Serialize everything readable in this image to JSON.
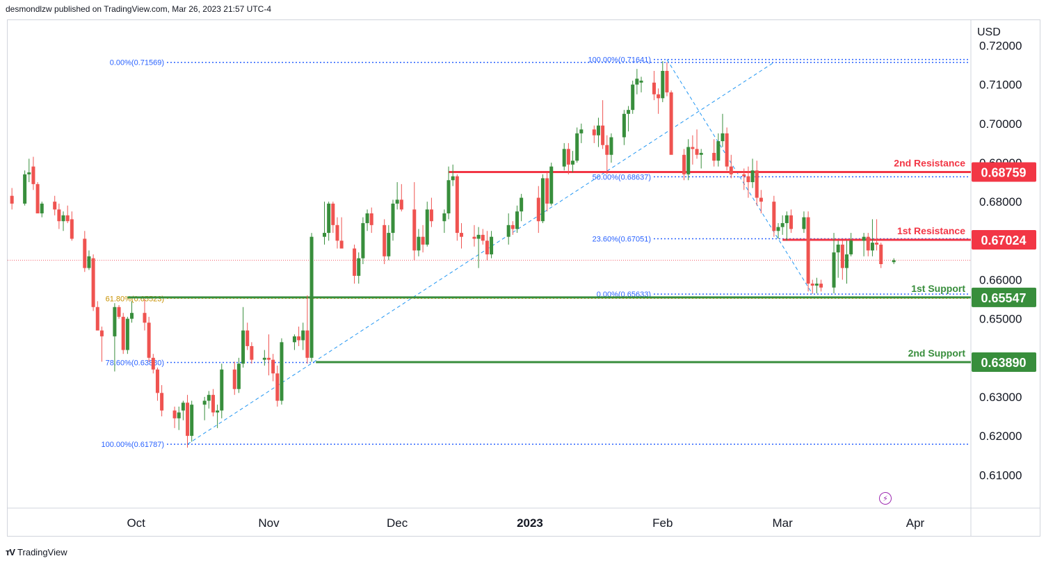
{
  "header": {
    "publisher": "desmondlzw published on TradingView.com, Mar 26, 2023 21:57 UTC-4"
  },
  "footer": {
    "brand": "TradingView"
  },
  "chart_data": {
    "type": "candlestick",
    "currency_label": "USD",
    "ylim": [
      0.6015,
      0.7265
    ],
    "y_ticks": [
      "0.72000",
      "0.71000",
      "0.70000",
      "0.69000",
      "0.68000",
      "0.66000",
      "0.65000",
      "0.63000",
      "0.62000",
      "0.61000"
    ],
    "x_ticks": [
      "Oct",
      "Nov",
      "Dec",
      "2023",
      "Feb",
      "Mar",
      "Apr"
    ],
    "x_tick_dates": [
      "2022-10-01",
      "2022-11-01",
      "2022-12-01",
      "2023-01-01",
      "2023-02-01",
      "2023-03-01",
      "2023-04-01"
    ],
    "x_range": [
      "2022-09-01",
      "2023-04-14"
    ],
    "current_price": 0.665,
    "levels": [
      {
        "name": "2nd Resistance",
        "value": "0.68759",
        "color": "#f23645"
      },
      {
        "name": "1st Resistance",
        "value": "0.67024",
        "color": "#f23645"
      },
      {
        "name": "1st Support",
        "value": "0.65547",
        "color": "#388e3c"
      },
      {
        "name": "2nd Support",
        "value": "0.63890",
        "color": "#388e3c"
      }
    ],
    "fib_left": [
      {
        "label": "0.00%(0.71569)",
        "value": 0.71569
      },
      {
        "label": "61.80%(0.65523)",
        "value": 0.65523
      },
      {
        "label": "78.60%(0.63880)",
        "value": 0.6388
      },
      {
        "label": "100.00%(0.61787)",
        "value": 0.61787
      }
    ],
    "fib_right": [
      {
        "label": "100.00%(0.71641)",
        "value": 0.71641
      },
      {
        "label": "50.00%(0.68637)",
        "value": 0.68637
      },
      {
        "label": "23.60%(0.67051)",
        "value": 0.67051
      },
      {
        "label": "0.00%(0.65633)",
        "value": 0.65633
      }
    ],
    "candles": [
      {
        "d": "2022-09-02",
        "o": 0.6815,
        "h": 0.6835,
        "l": 0.678,
        "c": 0.6795
      },
      {
        "d": "2022-09-05",
        "o": 0.6795,
        "h": 0.688,
        "l": 0.679,
        "c": 0.687
      },
      {
        "d": "2022-09-06",
        "o": 0.687,
        "h": 0.691,
        "l": 0.685,
        "c": 0.6875
      },
      {
        "d": "2022-09-07",
        "o": 0.689,
        "h": 0.6915,
        "l": 0.683,
        "c": 0.6845
      },
      {
        "d": "2022-09-08",
        "o": 0.6845,
        "h": 0.685,
        "l": 0.677,
        "c": 0.677
      },
      {
        "d": "2022-09-09",
        "o": 0.677,
        "h": 0.68,
        "l": 0.676,
        "c": 0.6795
      },
      {
        "d": "2022-09-12",
        "o": 0.68,
        "h": 0.6815,
        "l": 0.6765,
        "c": 0.678
      },
      {
        "d": "2022-09-13",
        "o": 0.678,
        "h": 0.6795,
        "l": 0.673,
        "c": 0.675
      },
      {
        "d": "2022-09-14",
        "o": 0.675,
        "h": 0.6775,
        "l": 0.6725,
        "c": 0.6765
      },
      {
        "d": "2022-09-15",
        "o": 0.6765,
        "h": 0.679,
        "l": 0.6745,
        "c": 0.675
      },
      {
        "d": "2022-09-16",
        "o": 0.6755,
        "h": 0.6775,
        "l": 0.67,
        "c": 0.6705
      },
      {
        "d": "2022-09-19",
        "o": 0.6705,
        "h": 0.6725,
        "l": 0.662,
        "c": 0.663
      },
      {
        "d": "2022-09-20",
        "o": 0.663,
        "h": 0.6675,
        "l": 0.6625,
        "c": 0.666
      },
      {
        "d": "2022-09-21",
        "o": 0.6655,
        "h": 0.6665,
        "l": 0.652,
        "c": 0.653
      },
      {
        "d": "2022-09-22",
        "o": 0.653,
        "h": 0.6545,
        "l": 0.647,
        "c": 0.647
      },
      {
        "d": "2022-09-23",
        "o": 0.647,
        "h": 0.648,
        "l": 0.639,
        "c": 0.6455
      },
      {
        "d": "2022-09-26",
        "o": 0.6455,
        "h": 0.654,
        "l": 0.6365,
        "c": 0.653
      },
      {
        "d": "2022-09-27",
        "o": 0.653,
        "h": 0.6535,
        "l": 0.65,
        "c": 0.6505
      },
      {
        "d": "2022-09-28",
        "o": 0.6505,
        "h": 0.6515,
        "l": 0.641,
        "c": 0.642
      },
      {
        "d": "2022-09-29",
        "o": 0.642,
        "h": 0.6505,
        "l": 0.641,
        "c": 0.65
      },
      {
        "d": "2022-09-30",
        "o": 0.65,
        "h": 0.6545,
        "l": 0.649,
        "c": 0.6515
      },
      {
        "d": "2022-10-03",
        "o": 0.6515,
        "h": 0.655,
        "l": 0.647,
        "c": 0.649
      },
      {
        "d": "2022-10-04",
        "o": 0.649,
        "h": 0.6505,
        "l": 0.639,
        "c": 0.64
      },
      {
        "d": "2022-10-05",
        "o": 0.64,
        "h": 0.641,
        "l": 0.636,
        "c": 0.637
      },
      {
        "d": "2022-10-06",
        "o": 0.637,
        "h": 0.6375,
        "l": 0.629,
        "c": 0.631
      },
      {
        "d": "2022-10-07",
        "o": 0.631,
        "h": 0.633,
        "l": 0.625,
        "c": 0.6265
      },
      {
        "d": "2022-10-10",
        "o": 0.6265,
        "h": 0.6275,
        "l": 0.622,
        "c": 0.6245
      },
      {
        "d": "2022-10-11",
        "o": 0.6245,
        "h": 0.6275,
        "l": 0.6215,
        "c": 0.626
      },
      {
        "d": "2022-10-12",
        "o": 0.6265,
        "h": 0.629,
        "l": 0.624,
        "c": 0.6285
      },
      {
        "d": "2022-10-13",
        "o": 0.6285,
        "h": 0.6305,
        "l": 0.617,
        "c": 0.62
      },
      {
        "d": "2022-10-14",
        "o": 0.62,
        "h": 0.629,
        "l": 0.6185,
        "c": 0.628
      },
      {
        "d": "2022-10-17",
        "o": 0.628,
        "h": 0.63,
        "l": 0.624,
        "c": 0.629
      },
      {
        "d": "2022-10-18",
        "o": 0.629,
        "h": 0.6315,
        "l": 0.627,
        "c": 0.6305
      },
      {
        "d": "2022-10-19",
        "o": 0.6305,
        "h": 0.632,
        "l": 0.625,
        "c": 0.626
      },
      {
        "d": "2022-10-20",
        "o": 0.626,
        "h": 0.628,
        "l": 0.622,
        "c": 0.6265
      },
      {
        "d": "2022-10-21",
        "o": 0.6265,
        "h": 0.6385,
        "l": 0.6245,
        "c": 0.637
      },
      {
        "d": "2022-10-24",
        "o": 0.637,
        "h": 0.639,
        "l": 0.6305,
        "c": 0.632
      },
      {
        "d": "2022-10-25",
        "o": 0.632,
        "h": 0.64,
        "l": 0.631,
        "c": 0.6385
      },
      {
        "d": "2022-10-26",
        "o": 0.6385,
        "h": 0.653,
        "l": 0.6375,
        "c": 0.647
      },
      {
        "d": "2022-10-27",
        "o": 0.647,
        "h": 0.649,
        "l": 0.642,
        "c": 0.643
      },
      {
        "d": "2022-10-28",
        "o": 0.643,
        "h": 0.644,
        "l": 0.6385,
        "c": 0.6395
      },
      {
        "d": "2022-10-31",
        "o": 0.6395,
        "h": 0.642,
        "l": 0.638,
        "c": 0.64
      },
      {
        "d": "2022-11-01",
        "o": 0.64,
        "h": 0.646,
        "l": 0.6355,
        "c": 0.6395
      },
      {
        "d": "2022-11-02",
        "o": 0.6395,
        "h": 0.641,
        "l": 0.634,
        "c": 0.636
      },
      {
        "d": "2022-11-03",
        "o": 0.636,
        "h": 0.638,
        "l": 0.6275,
        "c": 0.629
      },
      {
        "d": "2022-11-04",
        "o": 0.629,
        "h": 0.645,
        "l": 0.628,
        "c": 0.644
      },
      {
        "d": "2022-11-07",
        "o": 0.644,
        "h": 0.646,
        "l": 0.642,
        "c": 0.6455
      },
      {
        "d": "2022-11-08",
        "o": 0.6455,
        "h": 0.648,
        "l": 0.643,
        "c": 0.6445
      },
      {
        "d": "2022-11-09",
        "o": 0.6445,
        "h": 0.649,
        "l": 0.642,
        "c": 0.647
      },
      {
        "d": "2022-11-10",
        "o": 0.647,
        "h": 0.656,
        "l": 0.6385,
        "c": 0.64
      },
      {
        "d": "2022-11-11",
        "o": 0.64,
        "h": 0.672,
        "l": 0.639,
        "c": 0.671
      },
      {
        "d": "2022-11-14",
        "o": 0.671,
        "h": 0.68,
        "l": 0.669,
        "c": 0.672
      },
      {
        "d": "2022-11-15",
        "o": 0.672,
        "h": 0.68,
        "l": 0.67,
        "c": 0.6795
      },
      {
        "d": "2022-11-16",
        "o": 0.6795,
        "h": 0.68,
        "l": 0.672,
        "c": 0.674
      },
      {
        "d": "2022-11-17",
        "o": 0.674,
        "h": 0.676,
        "l": 0.668,
        "c": 0.67
      },
      {
        "d": "2022-11-18",
        "o": 0.67,
        "h": 0.676,
        "l": 0.668,
        "c": 0.668
      },
      {
        "d": "2022-11-21",
        "o": 0.668,
        "h": 0.669,
        "l": 0.659,
        "c": 0.661
      },
      {
        "d": "2022-11-22",
        "o": 0.661,
        "h": 0.667,
        "l": 0.659,
        "c": 0.6655
      },
      {
        "d": "2022-11-23",
        "o": 0.6655,
        "h": 0.676,
        "l": 0.664,
        "c": 0.6745
      },
      {
        "d": "2022-11-24",
        "o": 0.6745,
        "h": 0.678,
        "l": 0.6725,
        "c": 0.677
      },
      {
        "d": "2022-11-25",
        "o": 0.677,
        "h": 0.6785,
        "l": 0.672,
        "c": 0.674
      },
      {
        "d": "2022-11-28",
        "o": 0.674,
        "h": 0.6755,
        "l": 0.664,
        "c": 0.666
      },
      {
        "d": "2022-11-29",
        "o": 0.666,
        "h": 0.674,
        "l": 0.665,
        "c": 0.672
      },
      {
        "d": "2022-11-30",
        "o": 0.672,
        "h": 0.6805,
        "l": 0.67,
        "c": 0.6795
      },
      {
        "d": "2022-12-01",
        "o": 0.6795,
        "h": 0.685,
        "l": 0.678,
        "c": 0.6805
      },
      {
        "d": "2022-12-02",
        "o": 0.6805,
        "h": 0.6845,
        "l": 0.6775,
        "c": 0.678
      },
      {
        "d": "2022-12-05",
        "o": 0.678,
        "h": 0.685,
        "l": 0.665,
        "c": 0.6675
      },
      {
        "d": "2022-12-06",
        "o": 0.6675,
        "h": 0.673,
        "l": 0.666,
        "c": 0.671
      },
      {
        "d": "2022-12-07",
        "o": 0.671,
        "h": 0.674,
        "l": 0.667,
        "c": 0.669
      },
      {
        "d": "2022-12-08",
        "o": 0.669,
        "h": 0.68,
        "l": 0.6685,
        "c": 0.678
      },
      {
        "d": "2022-12-09",
        "o": 0.678,
        "h": 0.681,
        "l": 0.6735,
        "c": 0.675
      },
      {
        "d": "2022-12-12",
        "o": 0.675,
        "h": 0.678,
        "l": 0.672,
        "c": 0.677
      },
      {
        "d": "2022-12-13",
        "o": 0.677,
        "h": 0.689,
        "l": 0.6755,
        "c": 0.6855
      },
      {
        "d": "2022-12-14",
        "o": 0.6855,
        "h": 0.6895,
        "l": 0.684,
        "c": 0.6865
      },
      {
        "d": "2022-12-15",
        "o": 0.6865,
        "h": 0.687,
        "l": 0.67,
        "c": 0.672
      },
      {
        "d": "2022-12-16",
        "o": 0.672,
        "h": 0.6745,
        "l": 0.668,
        "c": 0.671
      },
      {
        "d": "2022-12-19",
        "o": 0.671,
        "h": 0.674,
        "l": 0.6685,
        "c": 0.6705
      },
      {
        "d": "2022-12-20",
        "o": 0.6705,
        "h": 0.6735,
        "l": 0.663,
        "c": 0.6715
      },
      {
        "d": "2022-12-21",
        "o": 0.6715,
        "h": 0.673,
        "l": 0.669,
        "c": 0.67
      },
      {
        "d": "2022-12-22",
        "o": 0.67,
        "h": 0.6725,
        "l": 0.665,
        "c": 0.6665
      },
      {
        "d": "2022-12-23",
        "o": 0.6665,
        "h": 0.6725,
        "l": 0.6655,
        "c": 0.671
      },
      {
        "d": "2022-12-27",
        "o": 0.671,
        "h": 0.677,
        "l": 0.669,
        "c": 0.674
      },
      {
        "d": "2022-12-28",
        "o": 0.674,
        "h": 0.675,
        "l": 0.6715,
        "c": 0.673
      },
      {
        "d": "2022-12-29",
        "o": 0.673,
        "h": 0.679,
        "l": 0.672,
        "c": 0.6775
      },
      {
        "d": "2022-12-30",
        "o": 0.6775,
        "h": 0.682,
        "l": 0.675,
        "c": 0.681
      },
      {
        "d": "2023-01-03",
        "o": 0.681,
        "h": 0.684,
        "l": 0.672,
        "c": 0.675
      },
      {
        "d": "2023-01-04",
        "o": 0.675,
        "h": 0.687,
        "l": 0.6745,
        "c": 0.686
      },
      {
        "d": "2023-01-05",
        "o": 0.686,
        "h": 0.6875,
        "l": 0.6775,
        "c": 0.6795
      },
      {
        "d": "2023-01-06",
        "o": 0.6795,
        "h": 0.69,
        "l": 0.679,
        "c": 0.689
      },
      {
        "d": "2023-01-09",
        "o": 0.689,
        "h": 0.695,
        "l": 0.688,
        "c": 0.6935
      },
      {
        "d": "2023-01-10",
        "o": 0.6935,
        "h": 0.695,
        "l": 0.687,
        "c": 0.6895
      },
      {
        "d": "2023-01-11",
        "o": 0.6895,
        "h": 0.693,
        "l": 0.6875,
        "c": 0.6905
      },
      {
        "d": "2023-01-12",
        "o": 0.6905,
        "h": 0.699,
        "l": 0.69,
        "c": 0.6975
      },
      {
        "d": "2023-01-13",
        "o": 0.6975,
        "h": 0.7,
        "l": 0.695,
        "c": 0.6985
      },
      {
        "d": "2023-01-16",
        "o": 0.6985,
        "h": 0.6995,
        "l": 0.695,
        "c": 0.697
      },
      {
        "d": "2023-01-17",
        "o": 0.697,
        "h": 0.7015,
        "l": 0.694,
        "c": 0.6995
      },
      {
        "d": "2023-01-18",
        "o": 0.6995,
        "h": 0.706,
        "l": 0.6935,
        "c": 0.6945
      },
      {
        "d": "2023-01-19",
        "o": 0.6945,
        "h": 0.697,
        "l": 0.687,
        "c": 0.692
      },
      {
        "d": "2023-01-20",
        "o": 0.692,
        "h": 0.6975,
        "l": 0.69,
        "c": 0.6965
      },
      {
        "d": "2023-01-23",
        "o": 0.6965,
        "h": 0.7035,
        "l": 0.6945,
        "c": 0.7025
      },
      {
        "d": "2023-01-24",
        "o": 0.7025,
        "h": 0.7045,
        "l": 0.698,
        "c": 0.7035
      },
      {
        "d": "2023-01-25",
        "o": 0.7035,
        "h": 0.711,
        "l": 0.7025,
        "c": 0.71
      },
      {
        "d": "2023-01-26",
        "o": 0.71,
        "h": 0.714,
        "l": 0.7075,
        "c": 0.7115
      },
      {
        "d": "2023-01-27",
        "o": 0.7105,
        "h": 0.712,
        "l": 0.708,
        "c": 0.711
      },
      {
        "d": "2023-01-30",
        "o": 0.7105,
        "h": 0.7135,
        "l": 0.706,
        "c": 0.7075
      },
      {
        "d": "2023-01-31",
        "o": 0.7075,
        "h": 0.709,
        "l": 0.7025,
        "c": 0.7065
      },
      {
        "d": "2023-02-01",
        "o": 0.7065,
        "h": 0.716,
        "l": 0.7055,
        "c": 0.7135
      },
      {
        "d": "2023-02-02",
        "o": 0.7135,
        "h": 0.7157,
        "l": 0.707,
        "c": 0.708
      },
      {
        "d": "2023-02-03",
        "o": 0.708,
        "h": 0.7085,
        "l": 0.693,
        "c": 0.692
      },
      {
        "d": "2023-02-06",
        "o": 0.692,
        "h": 0.6935,
        "l": 0.6855,
        "c": 0.687
      },
      {
        "d": "2023-02-07",
        "o": 0.687,
        "h": 0.696,
        "l": 0.6855,
        "c": 0.694
      },
      {
        "d": "2023-02-08",
        "o": 0.694,
        "h": 0.697,
        "l": 0.6895,
        "c": 0.6935
      },
      {
        "d": "2023-02-09",
        "o": 0.6935,
        "h": 0.6985,
        "l": 0.691,
        "c": 0.692
      },
      {
        "d": "2023-02-10",
        "o": 0.692,
        "h": 0.6935,
        "l": 0.6885,
        "c": 0.6925
      },
      {
        "d": "2023-02-13",
        "o": 0.6925,
        "h": 0.696,
        "l": 0.689,
        "c": 0.6905
      },
      {
        "d": "2023-02-14",
        "o": 0.6905,
        "h": 0.6975,
        "l": 0.689,
        "c": 0.6955
      },
      {
        "d": "2023-02-15",
        "o": 0.6955,
        "h": 0.7025,
        "l": 0.694,
        "c": 0.6975
      },
      {
        "d": "2023-02-16",
        "o": 0.6975,
        "h": 0.699,
        "l": 0.688,
        "c": 0.689
      },
      {
        "d": "2023-02-17",
        "o": 0.689,
        "h": 0.692,
        "l": 0.686,
        "c": 0.687
      },
      {
        "d": "2023-02-20",
        "o": 0.687,
        "h": 0.6885,
        "l": 0.683,
        "c": 0.6865
      },
      {
        "d": "2023-02-21",
        "o": 0.6865,
        "h": 0.689,
        "l": 0.681,
        "c": 0.685
      },
      {
        "d": "2023-02-22",
        "o": 0.685,
        "h": 0.691,
        "l": 0.6835,
        "c": 0.688
      },
      {
        "d": "2023-02-23",
        "o": 0.688,
        "h": 0.6905,
        "l": 0.679,
        "c": 0.681
      },
      {
        "d": "2023-02-24",
        "o": 0.681,
        "h": 0.683,
        "l": 0.677,
        "c": 0.68
      },
      {
        "d": "2023-02-27",
        "o": 0.68,
        "h": 0.6815,
        "l": 0.671,
        "c": 0.6725
      },
      {
        "d": "2023-02-28",
        "o": 0.6725,
        "h": 0.6745,
        "l": 0.6705,
        "c": 0.6735
      },
      {
        "d": "2023-03-01",
        "o": 0.6735,
        "h": 0.6765,
        "l": 0.6715,
        "c": 0.6745
      },
      {
        "d": "2023-03-02",
        "o": 0.6745,
        "h": 0.6775,
        "l": 0.67,
        "c": 0.6765
      },
      {
        "d": "2023-03-03",
        "o": 0.6765,
        "h": 0.678,
        "l": 0.672,
        "c": 0.673
      },
      {
        "d": "2023-03-06",
        "o": 0.673,
        "h": 0.6775,
        "l": 0.672,
        "c": 0.676
      },
      {
        "d": "2023-03-07",
        "o": 0.676,
        "h": 0.6775,
        "l": 0.657,
        "c": 0.659
      },
      {
        "d": "2023-03-08",
        "o": 0.659,
        "h": 0.66,
        "l": 0.6565,
        "c": 0.6585
      },
      {
        "d": "2023-03-09",
        "o": 0.6585,
        "h": 0.6605,
        "l": 0.6565,
        "c": 0.659
      },
      {
        "d": "2023-03-10",
        "o": 0.659,
        "h": 0.66,
        "l": 0.657,
        "c": 0.658
      },
      {
        "d": "2023-03-13",
        "o": 0.658,
        "h": 0.672,
        "l": 0.6565,
        "c": 0.667
      },
      {
        "d": "2023-03-14",
        "o": 0.667,
        "h": 0.67,
        "l": 0.6605,
        "c": 0.669
      },
      {
        "d": "2023-03-15",
        "o": 0.669,
        "h": 0.67,
        "l": 0.66,
        "c": 0.663
      },
      {
        "d": "2023-03-16",
        "o": 0.663,
        "h": 0.67,
        "l": 0.659,
        "c": 0.6665
      },
      {
        "d": "2023-03-17",
        "o": 0.6665,
        "h": 0.672,
        "l": 0.666,
        "c": 0.67
      },
      {
        "d": "2023-03-20",
        "o": 0.67,
        "h": 0.672,
        "l": 0.666,
        "c": 0.671
      },
      {
        "d": "2023-03-21",
        "o": 0.671,
        "h": 0.672,
        "l": 0.666,
        "c": 0.6675
      },
      {
        "d": "2023-03-22",
        "o": 0.6675,
        "h": 0.6755,
        "l": 0.666,
        "c": 0.6695
      },
      {
        "d": "2023-03-23",
        "o": 0.6695,
        "h": 0.6755,
        "l": 0.6675,
        "c": 0.669
      },
      {
        "d": "2023-03-24",
        "o": 0.669,
        "h": 0.6695,
        "l": 0.663,
        "c": 0.664
      },
      {
        "d": "2023-03-27",
        "o": 0.6645,
        "h": 0.6655,
        "l": 0.664,
        "c": 0.665
      }
    ]
  }
}
